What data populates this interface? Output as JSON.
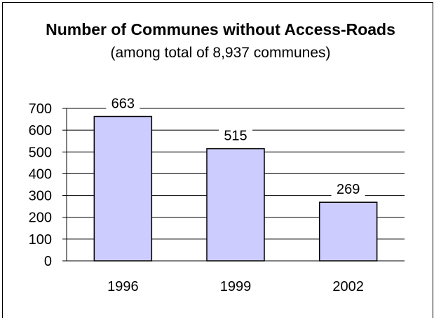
{
  "chart_data": {
    "type": "bar",
    "title": "Number of Communes without Access-Roads",
    "subtitle": "(among total of 8,937 communes)",
    "categories": [
      "1996",
      "1999",
      "2002"
    ],
    "values": [
      663,
      515,
      269
    ],
    "data_labels": [
      "663",
      "515",
      "269"
    ],
    "ylim": [
      0,
      700
    ],
    "yticks": [
      "0",
      "100",
      "200",
      "300",
      "400",
      "500",
      "600",
      "700"
    ],
    "xlabel": "",
    "ylabel": "",
    "grid": true,
    "legend": "none",
    "colors": {
      "bar_fill": "#ccccff",
      "bar_stroke": "#000000",
      "grid": "#000000"
    }
  }
}
